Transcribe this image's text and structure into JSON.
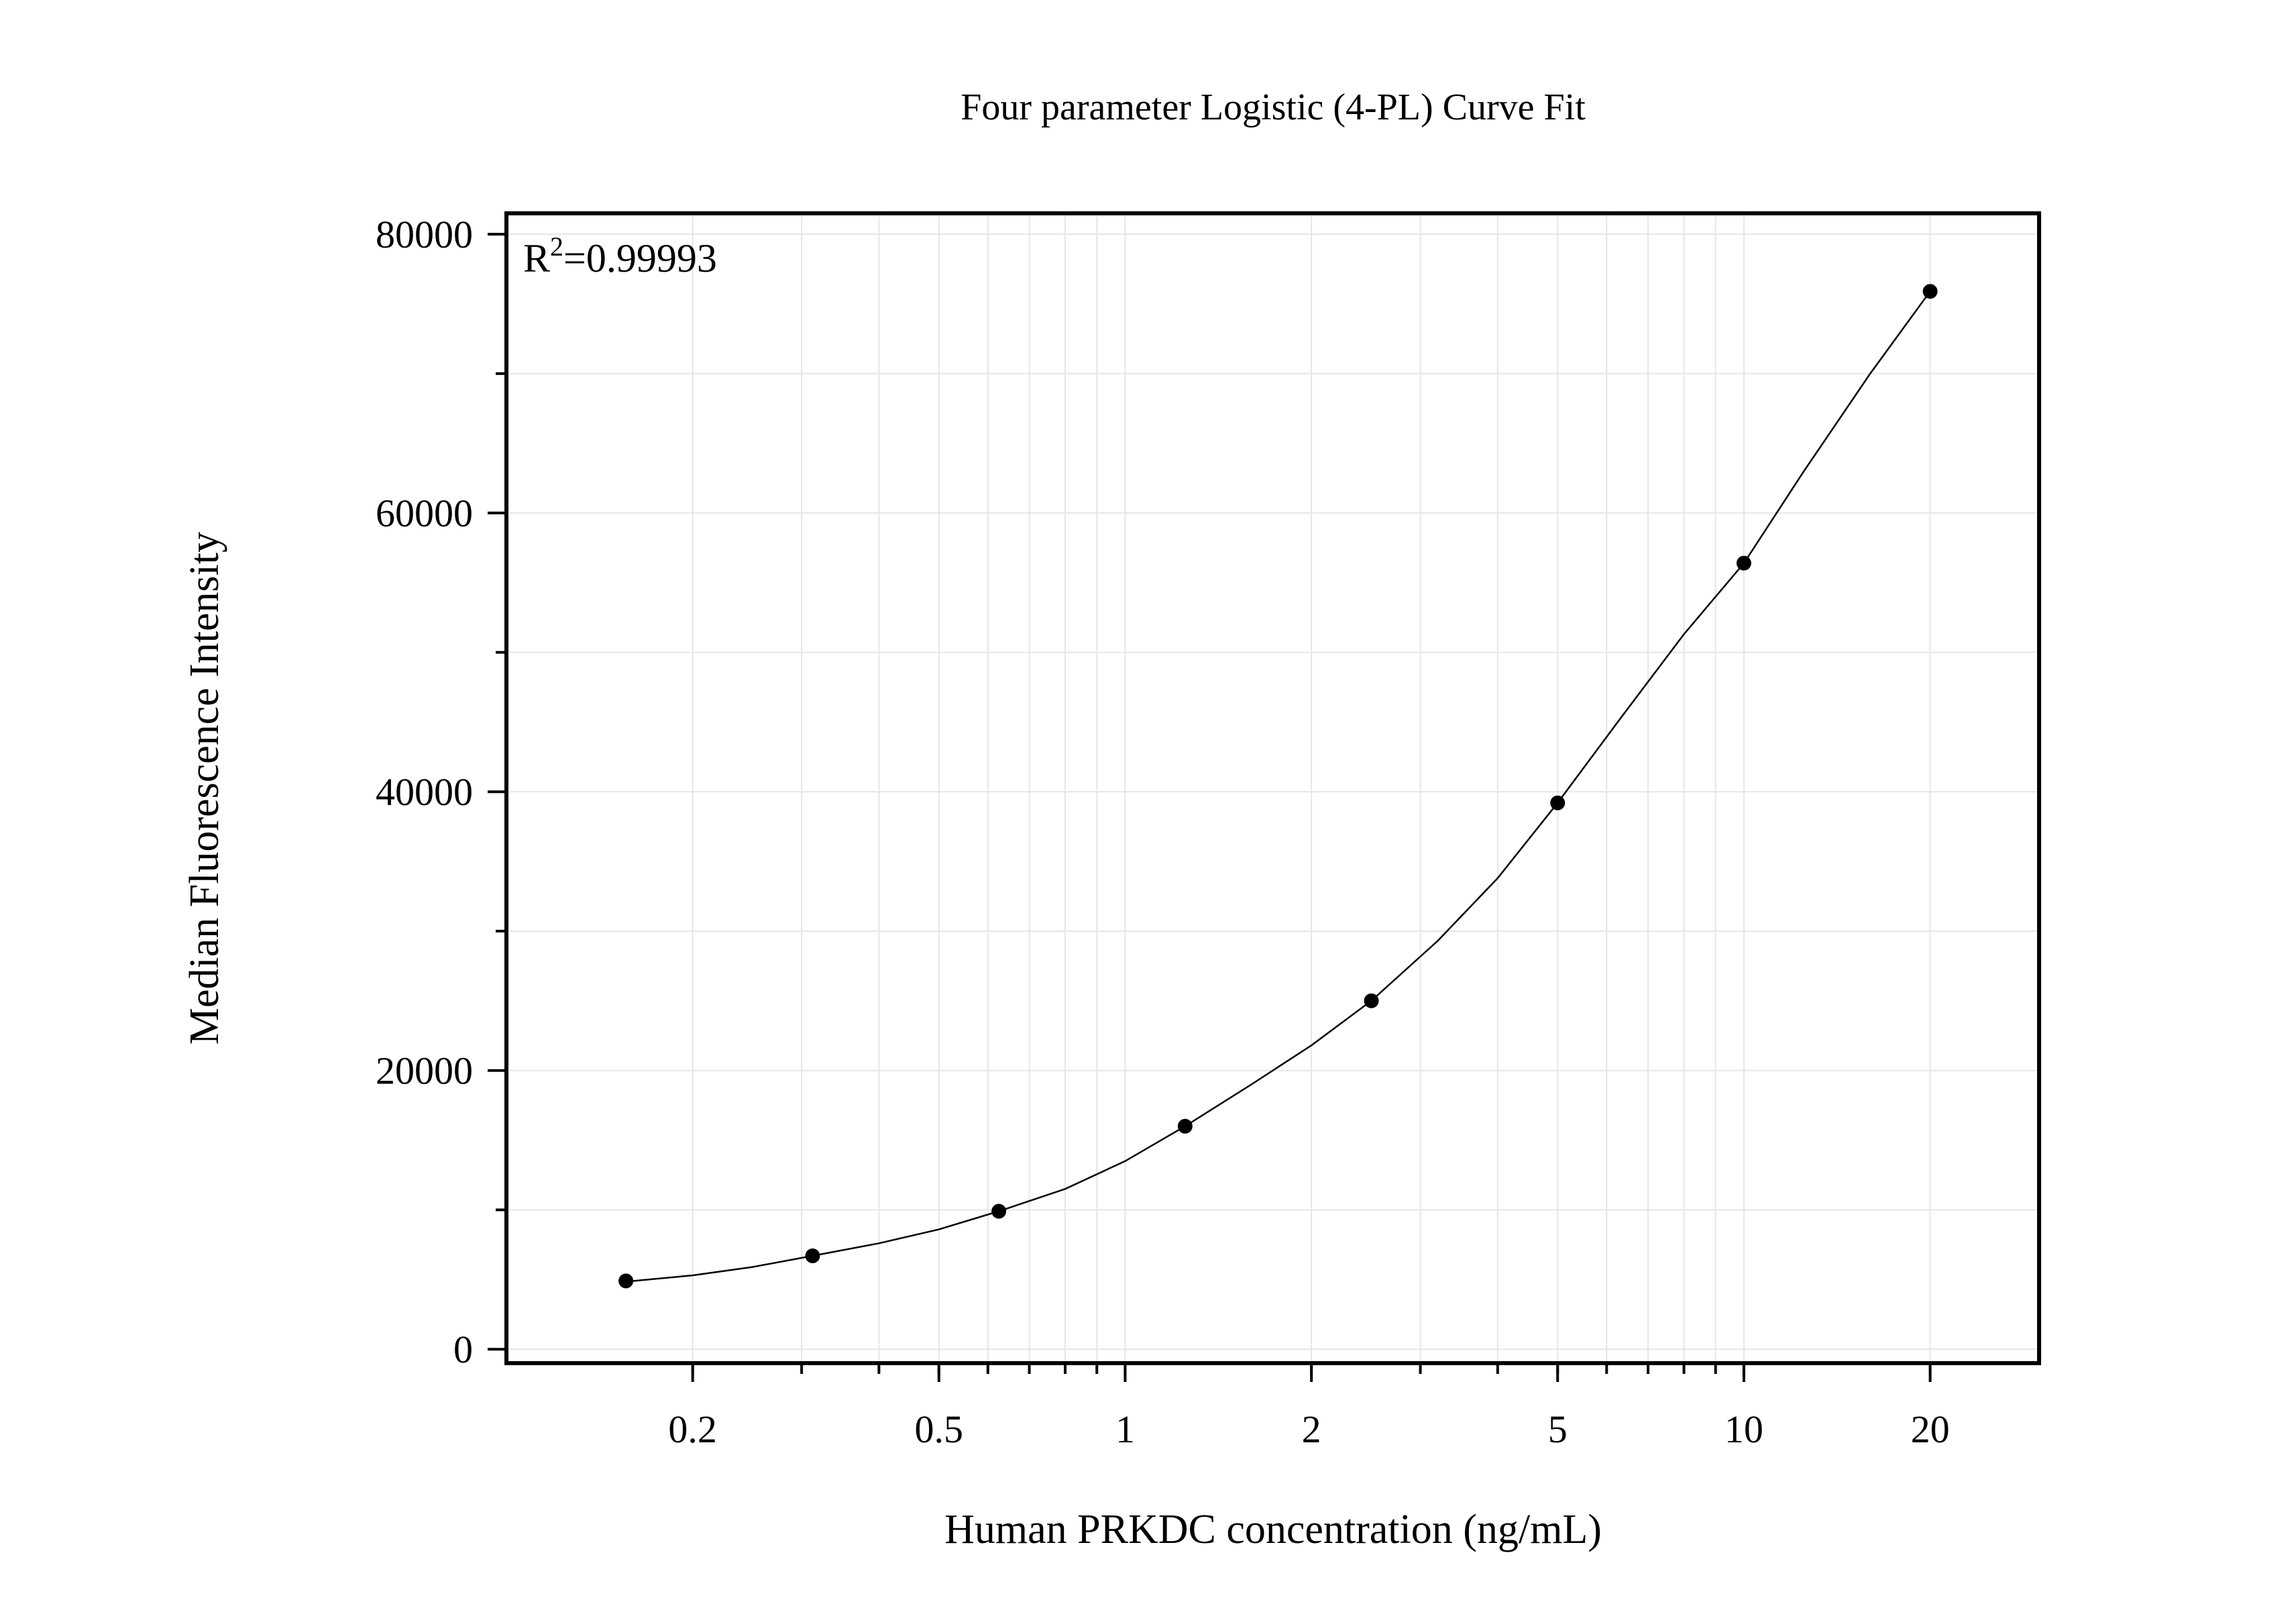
{
  "chart_data": {
    "type": "scatter",
    "title": "Four parameter Logistic (4-PL) Curve Fit",
    "xlabel": "Human PRKDC concentration (ng/mL)",
    "ylabel": "Median Fluorescence Intensity",
    "xscale": "log",
    "xlim": [
      0.1,
      30
    ],
    "ylim": [
      -1000,
      81500
    ],
    "grid": true,
    "legend": "none",
    "x_ticks": [
      {
        "value": 0.2,
        "label": "0.2"
      },
      {
        "value": 0.5,
        "label": "0.5"
      },
      {
        "value": 1,
        "label": "1"
      },
      {
        "value": 2,
        "label": "2"
      },
      {
        "value": 5,
        "label": "5"
      },
      {
        "value": 10,
        "label": "10"
      },
      {
        "value": 20,
        "label": "20"
      }
    ],
    "y_ticks": [
      {
        "value": 0,
        "label": "0"
      },
      {
        "value": 20000,
        "label": "20000"
      },
      {
        "value": 40000,
        "label": "40000"
      },
      {
        "value": 60000,
        "label": "60000"
      },
      {
        "value": 80000,
        "label": "80000"
      }
    ],
    "series": [
      {
        "type": "scatter",
        "x": [
          0.156,
          0.3125,
          0.625,
          1.25,
          2.5,
          5,
          10,
          20
        ],
        "y": [
          4900,
          6700,
          9900,
          16000,
          25000,
          39200,
          56400,
          75900
        ]
      },
      {
        "type": "line",
        "x": [
          0.156,
          0.2,
          0.25,
          0.3125,
          0.4,
          0.5,
          0.625,
          0.8,
          1.0,
          1.25,
          1.6,
          2.0,
          2.5,
          3.2,
          4.0,
          5.0,
          6.3,
          8.0,
          10.0,
          12.5,
          16.0,
          20.0
        ],
        "y": [
          4850,
          5300,
          5900,
          6700,
          7600,
          8600,
          9900,
          11500,
          13500,
          16000,
          19000,
          21800,
          25000,
          29300,
          33800,
          39200,
          45200,
          51300,
          56400,
          63000,
          70000,
          75900
        ]
      }
    ],
    "annotation": {
      "text_main": "R",
      "text_sup": "2",
      "text_value": "=0.99993"
    }
  }
}
